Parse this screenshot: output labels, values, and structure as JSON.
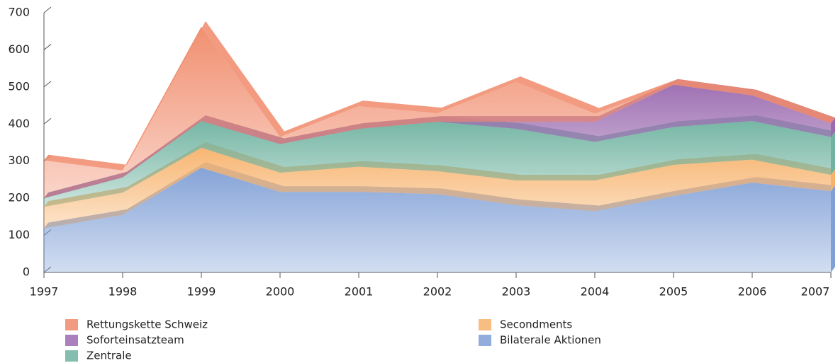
{
  "chart_data": {
    "type": "stacked_area",
    "categories": [
      "1997",
      "1998",
      "1999",
      "2000",
      "2001",
      "2002",
      "2003",
      "2004",
      "2005",
      "2006",
      "2007"
    ],
    "series": [
      {
        "name": "Rettungskette Schweiz",
        "color": "#f08a6a",
        "values": [
          102,
          19,
          254,
          19,
          61,
          23,
          107,
          22,
          0,
          0,
          0
        ]
      },
      {
        "name": "Soforteinsatzteam",
        "color": "#9b6bb0",
        "values": [
          0,
          0,
          0,
          0,
          0,
          0,
          19,
          54,
          114,
          69,
          37
        ]
      },
      {
        "name": "Zentrale",
        "color": "#6fb3a0",
        "values": [
          23,
          41,
          72,
          77,
          102,
          133,
          139,
          104,
          102,
          104,
          102
        ]
      },
      {
        "name": "Secondments",
        "color": "#f7b26b",
        "values": [
          58,
          60,
          54,
          52,
          68,
          62,
          67,
          83,
          84,
          62,
          44
        ]
      },
      {
        "name": "Bilaterale Aktionen",
        "color": "#7f9fd6",
        "values": [
          119,
          155,
          282,
          217,
          217,
          211,
          181,
          165,
          206,
          242,
          219
        ]
      }
    ],
    "ylim": [
      0,
      700
    ],
    "yticks": [
      0,
      100,
      200,
      300,
      400,
      500,
      600,
      700
    ]
  }
}
